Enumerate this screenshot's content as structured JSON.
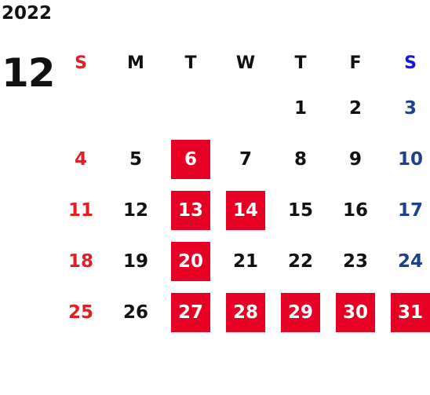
{
  "calendar": {
    "year": "2022",
    "month": "12",
    "weekdays": [
      "S",
      "M",
      "T",
      "W",
      "T",
      "F",
      "S"
    ],
    "weeks": [
      [
        "",
        "",
        "",
        "",
        "1",
        "2",
        "3"
      ],
      [
        "4",
        "5",
        "6",
        "7",
        "8",
        "9",
        "10"
      ],
      [
        "11",
        "12",
        "13",
        "14",
        "15",
        "16",
        "17"
      ],
      [
        "18",
        "19",
        "20",
        "21",
        "22",
        "23",
        "24"
      ],
      [
        "25",
        "26",
        "27",
        "28",
        "29",
        "30",
        "31"
      ]
    ],
    "highlighted_days": [
      "6",
      "13",
      "14",
      "20",
      "27",
      "28",
      "29",
      "30",
      "31"
    ],
    "colors": {
      "highlight_bg": "#e60023",
      "sunday": "#e11f24",
      "saturday": "#1f3f8f",
      "saturday_header": "#1414e6",
      "text": "#111111"
    }
  }
}
